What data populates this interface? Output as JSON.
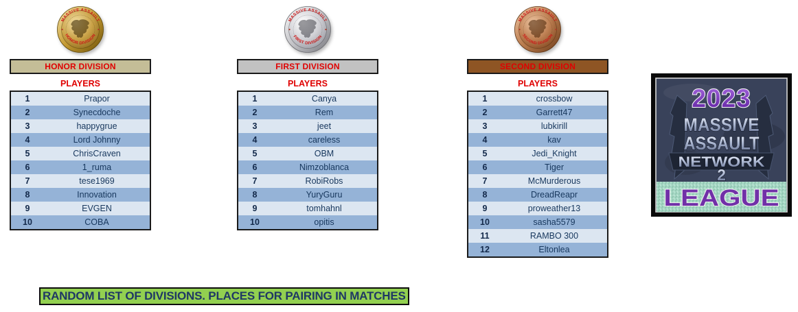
{
  "colors": {
    "honor_header_bg": "#c4bd97",
    "first_header_bg": "#c2c2c2",
    "second_header_bg": "#8e5524",
    "accent_red": "#e00000",
    "row_light": "#dce6f1",
    "row_dark": "#95b3d7",
    "row_text": "#17375d",
    "banner_bg": "#92d050",
    "banner_text": "#1f3864",
    "logo_purple": "#7130a8",
    "logo_band_green": "#a6d8c4"
  },
  "divisions": [
    {
      "title": "HONOR DIVISION",
      "players_label": "PLAYERS",
      "medal_icon": "gold-medal-icon",
      "medal_top_text": "MASSIVE ASSAULT",
      "medal_bottom_text": "HONOR DIVISION",
      "header_bg": "#c4bd97",
      "players": [
        "Prapor",
        "Synecdoche",
        "happygrue",
        "Lord Johnny",
        "ChrisCraven",
        "1_ruma",
        "tese1969",
        "Innovation",
        "EVGEN",
        "COBA"
      ]
    },
    {
      "title": "FIRST DIVISION",
      "players_label": "PLAYERS",
      "medal_icon": "silver-medal-icon",
      "medal_top_text": "MASSIVE ASSAULT",
      "medal_bottom_text": "FIRST DIVISION",
      "header_bg": "#c2c2c2",
      "players": [
        "Canya",
        "Rem",
        "jeet",
        "careless",
        "OBM",
        "Nimzoblanca",
        "RobiRobs",
        "YuryGuru",
        "tomhahnl",
        "opitis"
      ]
    },
    {
      "title": "SECOND DIVISION",
      "players_label": "PLAYERS",
      "medal_icon": "bronze-medal-icon",
      "medal_top_text": "MASSIVE ASSAULT",
      "medal_bottom_text": "SECOND DIVISION",
      "header_bg": "#8e5524",
      "players": [
        "crossbow",
        "Garrett47",
        "lubkirill",
        "kav",
        "Jedi_Knight",
        "Tiger",
        "McMurderous",
        "DreadReapr",
        "proweather13",
        "sasha5579",
        "RAMBO 300",
        "Eltonlea"
      ]
    }
  ],
  "logo": {
    "icon": "massive-assault-network-league-logo",
    "year": "2023",
    "title_line1": "MASSIVE",
    "title_line2": "ASSAULT",
    "title_line3": "NETWORK",
    "title_line4": "2",
    "league_label": "LEAGUE"
  },
  "footer": {
    "banner_text": "RANDOM LIST OF DIVISIONS. PLACES FOR PAIRING IN MATCHES"
  }
}
